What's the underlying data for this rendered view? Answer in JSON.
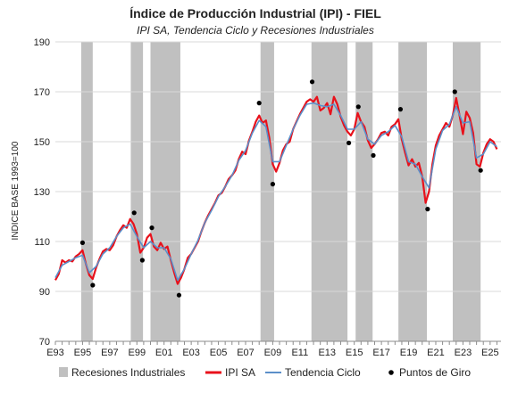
{
  "chart_data": {
    "type": "line",
    "title": "Índice de Producción Industrial (IPI) - FIEL",
    "subtitle": "IPI SA, Tendencia Ciclo y Recesiones Industriales",
    "ylabel": "INDICE BASE 1993=100",
    "xlabel": "",
    "xlim": [
      1993.0,
      2025.8
    ],
    "ylim": [
      70,
      190
    ],
    "yticks": [
      70,
      90,
      110,
      130,
      150,
      170,
      190
    ],
    "xtick_labels": [
      {
        "x": 1993,
        "label": "E93"
      },
      {
        "x": 1995,
        "label": "E95"
      },
      {
        "x": 1997,
        "label": "E97"
      },
      {
        "x": 1999,
        "label": "E99"
      },
      {
        "x": 2001,
        "label": "E01"
      },
      {
        "x": 2003,
        "label": "E03"
      },
      {
        "x": 2005,
        "label": "E05"
      },
      {
        "x": 2007,
        "label": "E07"
      },
      {
        "x": 2009,
        "label": "E09"
      },
      {
        "x": 2011,
        "label": "E11"
      },
      {
        "x": 2013,
        "label": "E13"
      },
      {
        "x": 2015,
        "label": "E15"
      },
      {
        "x": 2017,
        "label": "E17"
      },
      {
        "x": 2019,
        "label": "E19"
      },
      {
        "x": 2021,
        "label": "E21"
      },
      {
        "x": 2023,
        "label": "E23"
      },
      {
        "x": 2025,
        "label": "E25"
      }
    ],
    "grid": true,
    "legend_position": "bottom",
    "colors": {
      "recession": "#c0c0c0",
      "ipi_sa": "#e8111b",
      "trend": "#5b8fc9",
      "turning_points": "#000000",
      "grid": "#d9d9d9",
      "axis": "#8c8c8c"
    },
    "recessions": [
      [
        1994.9,
        1995.75
      ],
      [
        1998.55,
        1999.45
      ],
      [
        2000.0,
        2002.2
      ],
      [
        2008.1,
        2009.1
      ],
      [
        2011.85,
        2014.5
      ],
      [
        2015.1,
        2016.35
      ],
      [
        2018.25,
        2020.35
      ],
      [
        2022.25,
        2024.3
      ]
    ],
    "series": [
      {
        "name": "IPI SA",
        "points": [
          [
            1993.0,
            94.5
          ],
          [
            1993.25,
            97.0
          ],
          [
            1993.5,
            102.5
          ],
          [
            1993.75,
            101.5
          ],
          [
            1994.0,
            102.5
          ],
          [
            1994.25,
            102.0
          ],
          [
            1994.5,
            104.0
          ],
          [
            1994.75,
            105.0
          ],
          [
            1995.0,
            106.5
          ],
          [
            1995.25,
            101.0
          ],
          [
            1995.5,
            96.5
          ],
          [
            1995.75,
            95.0
          ],
          [
            1996.0,
            99.5
          ],
          [
            1996.25,
            103.0
          ],
          [
            1996.5,
            106.0
          ],
          [
            1996.75,
            107.0
          ],
          [
            1997.0,
            106.5
          ],
          [
            1997.25,
            108.5
          ],
          [
            1997.5,
            112.0
          ],
          [
            1997.75,
            114.5
          ],
          [
            1998.0,
            116.5
          ],
          [
            1998.25,
            115.5
          ],
          [
            1998.5,
            119.0
          ],
          [
            1998.75,
            117.0
          ],
          [
            1999.0,
            113.0
          ],
          [
            1999.25,
            105.5
          ],
          [
            1999.5,
            107.5
          ],
          [
            1999.75,
            111.5
          ],
          [
            2000.0,
            113.0
          ],
          [
            2000.25,
            108.0
          ],
          [
            2000.5,
            106.5
          ],
          [
            2000.75,
            109.5
          ],
          [
            2001.0,
            107.0
          ],
          [
            2001.25,
            108.0
          ],
          [
            2001.5,
            102.5
          ],
          [
            2001.75,
            97.5
          ],
          [
            2002.0,
            93.0
          ],
          [
            2002.25,
            95.5
          ],
          [
            2002.5,
            99.0
          ],
          [
            2002.75,
            103.5
          ],
          [
            2003.0,
            105.0
          ],
          [
            2003.25,
            107.5
          ],
          [
            2003.5,
            110.0
          ],
          [
            2003.75,
            114.0
          ],
          [
            2004.0,
            117.5
          ],
          [
            2004.25,
            120.5
          ],
          [
            2004.5,
            123.0
          ],
          [
            2004.75,
            125.5
          ],
          [
            2005.0,
            128.5
          ],
          [
            2005.25,
            129.5
          ],
          [
            2005.5,
            132.0
          ],
          [
            2005.75,
            135.0
          ],
          [
            2006.0,
            136.5
          ],
          [
            2006.25,
            138.5
          ],
          [
            2006.5,
            143.0
          ],
          [
            2006.75,
            146.0
          ],
          [
            2007.0,
            145.0
          ],
          [
            2007.25,
            150.5
          ],
          [
            2007.5,
            154.0
          ],
          [
            2007.75,
            158.0
          ],
          [
            2008.0,
            160.5
          ],
          [
            2008.25,
            157.5
          ],
          [
            2008.5,
            158.5
          ],
          [
            2008.75,
            151.5
          ],
          [
            2009.0,
            141.0
          ],
          [
            2009.25,
            138.0
          ],
          [
            2009.5,
            141.5
          ],
          [
            2009.75,
            146.5
          ],
          [
            2010.0,
            149.0
          ],
          [
            2010.25,
            150.0
          ],
          [
            2010.5,
            155.0
          ],
          [
            2010.75,
            158.0
          ],
          [
            2011.0,
            161.0
          ],
          [
            2011.25,
            163.5
          ],
          [
            2011.5,
            166.0
          ],
          [
            2011.75,
            167.0
          ],
          [
            2012.0,
            166.0
          ],
          [
            2012.25,
            168.0
          ],
          [
            2012.5,
            162.5
          ],
          [
            2012.75,
            163.5
          ],
          [
            2013.0,
            165.5
          ],
          [
            2013.25,
            161.0
          ],
          [
            2013.5,
            168.0
          ],
          [
            2013.75,
            165.0
          ],
          [
            2014.0,
            160.0
          ],
          [
            2014.25,
            156.5
          ],
          [
            2014.5,
            154.0
          ],
          [
            2014.75,
            152.5
          ],
          [
            2015.0,
            155.0
          ],
          [
            2015.25,
            161.5
          ],
          [
            2015.5,
            158.0
          ],
          [
            2015.75,
            156.0
          ],
          [
            2016.0,
            150.5
          ],
          [
            2016.25,
            147.5
          ],
          [
            2016.5,
            149.0
          ],
          [
            2016.75,
            151.0
          ],
          [
            2017.0,
            153.5
          ],
          [
            2017.25,
            154.0
          ],
          [
            2017.5,
            152.5
          ],
          [
            2017.75,
            156.0
          ],
          [
            2018.0,
            157.0
          ],
          [
            2018.25,
            159.0
          ],
          [
            2018.5,
            151.0
          ],
          [
            2018.75,
            145.5
          ],
          [
            2019.0,
            140.5
          ],
          [
            2019.25,
            143.0
          ],
          [
            2019.5,
            140.0
          ],
          [
            2019.75,
            141.5
          ],
          [
            2020.0,
            136.0
          ],
          [
            2020.25,
            125.5
          ],
          [
            2020.5,
            130.0
          ],
          [
            2020.75,
            141.0
          ],
          [
            2021.0,
            148.5
          ],
          [
            2021.25,
            152.5
          ],
          [
            2021.5,
            155.0
          ],
          [
            2021.75,
            157.5
          ],
          [
            2022.0,
            156.0
          ],
          [
            2022.25,
            160.5
          ],
          [
            2022.5,
            167.5
          ],
          [
            2022.75,
            160.5
          ],
          [
            2023.0,
            153.0
          ],
          [
            2023.25,
            162.0
          ],
          [
            2023.5,
            159.5
          ],
          [
            2023.75,
            153.5
          ],
          [
            2024.0,
            141.0
          ],
          [
            2024.25,
            140.0
          ],
          [
            2024.5,
            145.5
          ],
          [
            2024.75,
            149.0
          ],
          [
            2025.0,
            151.0
          ],
          [
            2025.25,
            150.0
          ],
          [
            2025.5,
            147.0
          ]
        ]
      },
      {
        "name": "Tendencia Ciclo",
        "points": [
          [
            1993.0,
            95.5
          ],
          [
            1993.5,
            100.5
          ],
          [
            1994.0,
            102.0
          ],
          [
            1994.5,
            103.5
          ],
          [
            1995.0,
            104.5
          ],
          [
            1995.5,
            97.5
          ],
          [
            1996.0,
            100.0
          ],
          [
            1996.5,
            105.0
          ],
          [
            1997.0,
            107.5
          ],
          [
            1997.5,
            112.0
          ],
          [
            1998.0,
            115.5
          ],
          [
            1998.5,
            117.0
          ],
          [
            1999.0,
            112.0
          ],
          [
            1999.5,
            107.5
          ],
          [
            2000.0,
            110.0
          ],
          [
            2000.5,
            107.5
          ],
          [
            2001.0,
            107.5
          ],
          [
            2001.5,
            103.0
          ],
          [
            2002.0,
            94.5
          ],
          [
            2002.5,
            99.0
          ],
          [
            2003.0,
            105.0
          ],
          [
            2003.5,
            110.5
          ],
          [
            2004.0,
            117.5
          ],
          [
            2004.5,
            122.5
          ],
          [
            2005.0,
            128.0
          ],
          [
            2005.5,
            132.0
          ],
          [
            2006.0,
            136.5
          ],
          [
            2006.5,
            142.5
          ],
          [
            2007.0,
            146.5
          ],
          [
            2007.5,
            153.5
          ],
          [
            2008.0,
            158.5
          ],
          [
            2008.5,
            156.0
          ],
          [
            2009.0,
            142.0
          ],
          [
            2009.5,
            142.0
          ],
          [
            2010.0,
            148.5
          ],
          [
            2010.5,
            155.0
          ],
          [
            2011.0,
            160.5
          ],
          [
            2011.5,
            165.0
          ],
          [
            2012.0,
            165.5
          ],
          [
            2012.5,
            164.5
          ],
          [
            2013.0,
            164.0
          ],
          [
            2013.5,
            165.0
          ],
          [
            2014.0,
            160.5
          ],
          [
            2014.5,
            155.0
          ],
          [
            2015.0,
            155.0
          ],
          [
            2015.5,
            158.0
          ],
          [
            2016.0,
            151.0
          ],
          [
            2016.5,
            149.0
          ],
          [
            2017.0,
            152.5
          ],
          [
            2017.5,
            154.0
          ],
          [
            2018.0,
            156.5
          ],
          [
            2018.5,
            152.0
          ],
          [
            2019.0,
            142.0
          ],
          [
            2019.5,
            141.0
          ],
          [
            2020.0,
            136.0
          ],
          [
            2020.5,
            131.5
          ],
          [
            2021.0,
            147.0
          ],
          [
            2021.5,
            154.5
          ],
          [
            2022.0,
            157.0
          ],
          [
            2022.5,
            164.0
          ],
          [
            2023.0,
            157.5
          ],
          [
            2023.5,
            158.0
          ],
          [
            2024.0,
            143.5
          ],
          [
            2024.5,
            145.0
          ],
          [
            2025.0,
            150.0
          ],
          [
            2025.5,
            148.0
          ]
        ]
      },
      {
        "name": "Puntos de Giro",
        "points": [
          [
            1995.0,
            109.5
          ],
          [
            1995.75,
            92.5
          ],
          [
            1998.8,
            121.5
          ],
          [
            1999.4,
            102.5
          ],
          [
            2000.1,
            115.5
          ],
          [
            2002.1,
            88.5
          ],
          [
            2008.0,
            165.5
          ],
          [
            2009.0,
            133.0
          ],
          [
            2011.9,
            174.0
          ],
          [
            2014.6,
            149.5
          ],
          [
            2015.3,
            164.0
          ],
          [
            2016.4,
            144.5
          ],
          [
            2018.4,
            163.0
          ],
          [
            2020.4,
            123.0
          ],
          [
            2022.4,
            170.0
          ],
          [
            2024.3,
            138.5
          ]
        ]
      }
    ],
    "legend": {
      "recessions": "Recesiones Industriales",
      "ipi_sa": "IPI SA",
      "trend": "Tendencia Ciclo",
      "turning_points": "Puntos de Giro"
    }
  }
}
